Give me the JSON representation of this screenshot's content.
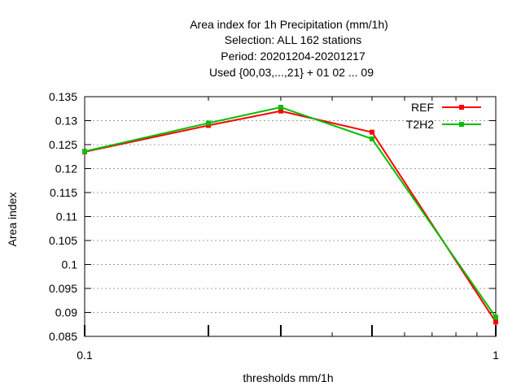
{
  "chart_data": {
    "type": "line",
    "title_lines": [
      "Area index  for 1h Precipitation (mm/1h)",
      "Selection: ALL    162 stations",
      "Period: 20201204-20201217",
      "Used {00,03,...,21} + 01 02 ... 09"
    ],
    "xlabel": "thresholds mm/1h",
    "ylabel": "Area index",
    "x_scale": "log",
    "xlim": [
      0.1,
      1
    ],
    "ylim": [
      0.085,
      0.135
    ],
    "x_tick_labels": [
      "0.1",
      "1"
    ],
    "y_tick_labels": [
      "0.085",
      "0.09",
      "0.095",
      "0.1",
      "0.105",
      "0.11",
      "0.115",
      "0.12",
      "0.125",
      "0.13",
      "0.135"
    ],
    "y_ticks": [
      0.085,
      0.09,
      0.095,
      0.1,
      0.105,
      0.11,
      0.115,
      0.12,
      0.125,
      0.13,
      0.135
    ],
    "x": [
      0.1,
      0.2,
      0.3,
      0.5,
      1.0
    ],
    "grid": true,
    "legend_position": "top-right",
    "series": [
      {
        "name": "REF",
        "color": "#ff0000",
        "values": [
          0.1235,
          0.129,
          0.132,
          0.1276,
          0.088
        ]
      },
      {
        "name": "T2H2",
        "color": "#00c000",
        "values": [
          0.1236,
          0.1295,
          0.1328,
          0.1262,
          0.089
        ]
      }
    ]
  }
}
